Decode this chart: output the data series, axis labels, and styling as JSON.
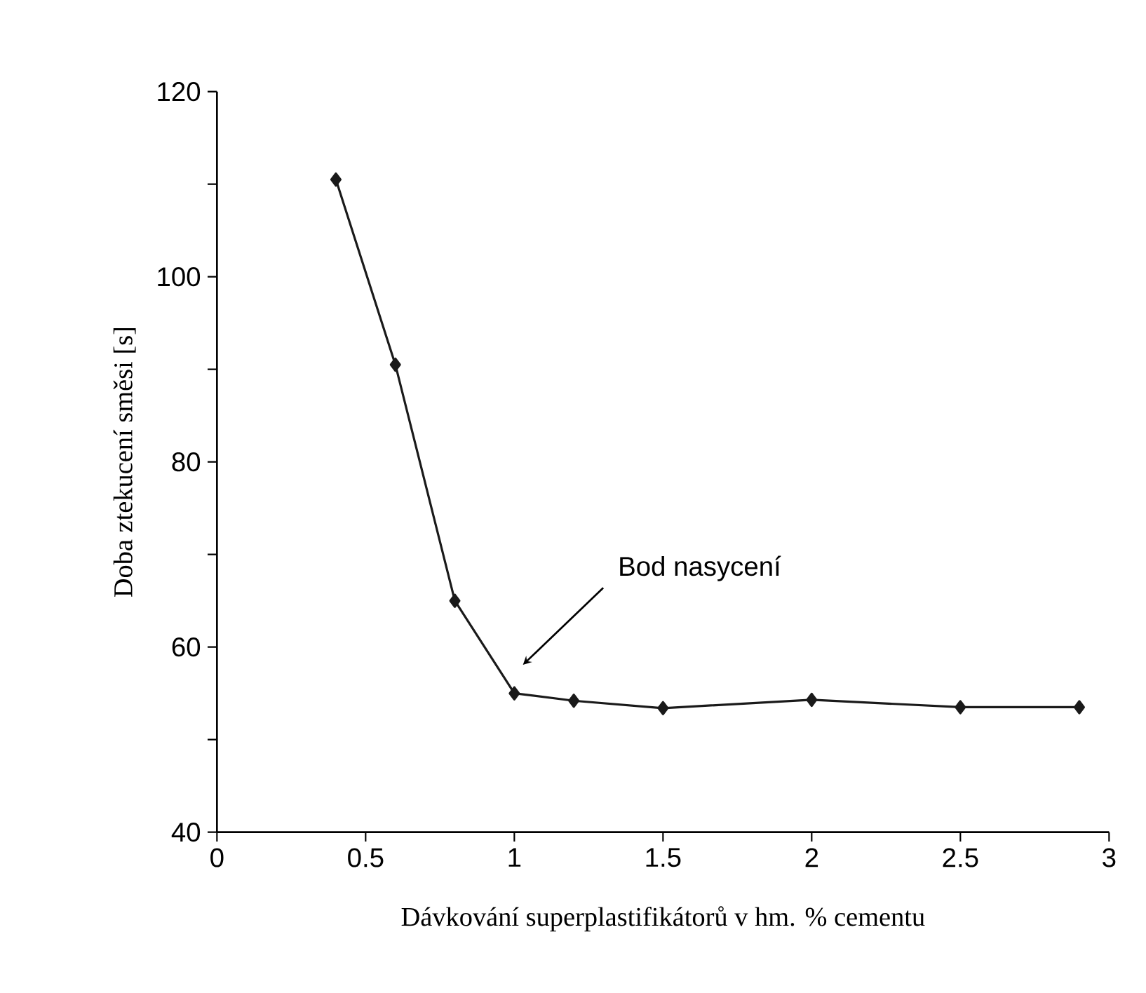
{
  "chart_data": {
    "type": "line",
    "xlabel": "Dávkování superplastifikátorů v  hm. % cementu",
    "ylabel": "Doba ztekucení směsi [s]",
    "x": [
      0.4,
      0.6,
      0.8,
      1.0,
      1.2,
      1.5,
      2.0,
      2.5,
      2.9
    ],
    "series": [
      {
        "color": "#1a1a1a",
        "values": [
          110.5,
          90.5,
          65,
          55,
          54.2,
          53.4,
          54.3,
          53.5,
          53.5
        ]
      }
    ],
    "xlim": [
      0,
      3
    ],
    "xticks": [
      0,
      0.5,
      1,
      1.5,
      2,
      2.5,
      3
    ],
    "ylim": [
      40,
      120
    ],
    "yticks": [
      40,
      {
        "value": 50,
        "label": null
      },
      60,
      {
        "value": 70,
        "label": null
      },
      80,
      {
        "value": 90,
        "label": null
      },
      100,
      {
        "value": 110,
        "label": null
      },
      120
    ],
    "marker": "diamond",
    "line_style": "solid",
    "annotations": [
      "Bod nasycení"
    ]
  }
}
